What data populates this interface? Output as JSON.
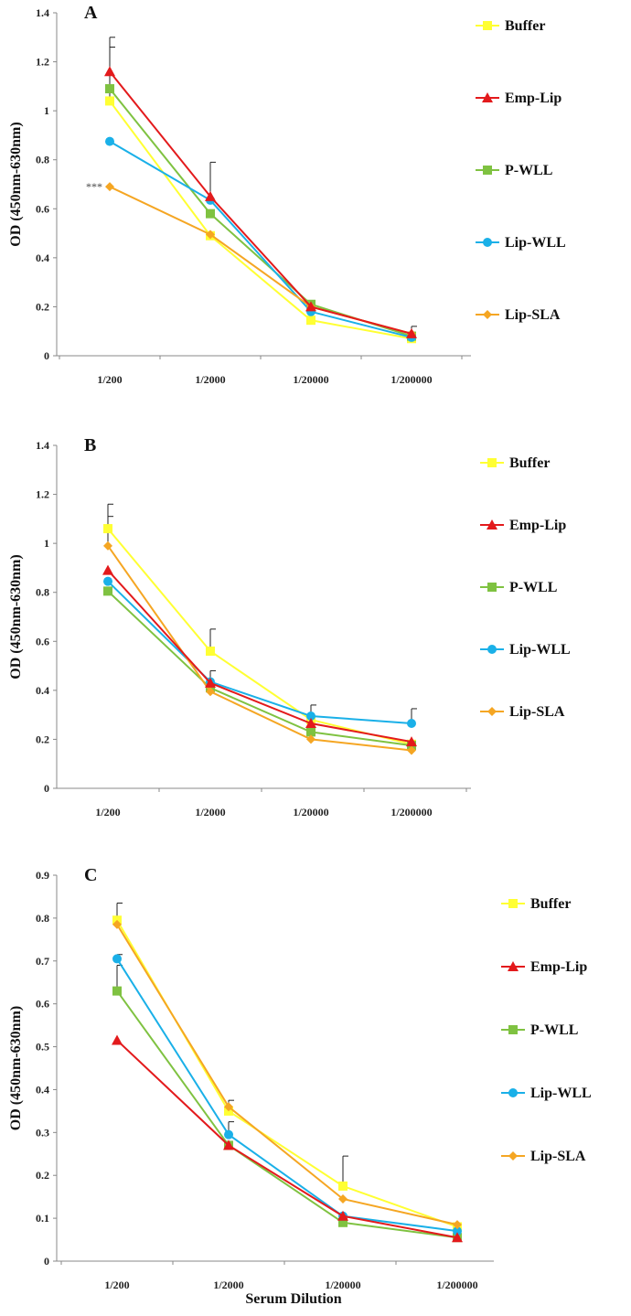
{
  "chart_data": [
    {
      "type": "line",
      "panel_label": "A",
      "ylabel": "OD (450nm-630nm)",
      "xlabel": "",
      "categories": [
        "1/200",
        "1/2000",
        "1/20000",
        "1/200000"
      ],
      "ylim": [
        0,
        1.4
      ],
      "yticks": [
        "0",
        "0.2",
        "0.4",
        "0.6",
        "0.8",
        "1",
        "1.2",
        "1.4"
      ],
      "annotation": "***",
      "series": [
        {
          "name": "Buffer",
          "color": "#ffff33",
          "marker": "square",
          "values": [
            1.04,
            0.49,
            0.145,
            0.07
          ],
          "errors": [
            0.22,
            0.0,
            0.0,
            0.0
          ]
        },
        {
          "name": "Emp-Lip",
          "color": "#e31a1c",
          "marker": "triangle",
          "values": [
            1.16,
            0.65,
            0.2,
            0.09
          ],
          "errors": [
            0.14,
            0.14,
            0.0,
            0.03
          ]
        },
        {
          "name": "P-WLL",
          "color": "#7fc241",
          "marker": "square",
          "values": [
            1.09,
            0.58,
            0.21,
            0.08
          ],
          "errors": [
            0.0,
            0.0,
            0.0,
            0.0
          ]
        },
        {
          "name": "Lip-WLL",
          "color": "#1ab0e8",
          "marker": "circle",
          "values": [
            0.875,
            0.635,
            0.18,
            0.075
          ],
          "errors": [
            0.0,
            0.0,
            0.0,
            0.0
          ]
        },
        {
          "name": "Lip-SLA",
          "color": "#f5a623",
          "marker": "diamond",
          "values": [
            0.69,
            0.495,
            0.2,
            0.09
          ],
          "errors": [
            0.0,
            0.0,
            0.0,
            0.0
          ]
        }
      ]
    },
    {
      "type": "line",
      "panel_label": "B",
      "ylabel": "OD (450nm-630nm)",
      "xlabel": "",
      "categories": [
        "1/200",
        "1/2000",
        "1/20000",
        "1/200000"
      ],
      "ylim": [
        0,
        1.4
      ],
      "yticks": [
        "0",
        "0.2",
        "0.4",
        "0.6",
        "0.8",
        "1",
        "1.2",
        "1.4"
      ],
      "annotation": "",
      "series": [
        {
          "name": "Buffer",
          "color": "#ffff33",
          "marker": "square",
          "values": [
            1.06,
            0.56,
            0.28,
            0.18
          ],
          "errors": [
            0.1,
            0.09,
            0.06,
            0.0
          ]
        },
        {
          "name": "Emp-Lip",
          "color": "#e31a1c",
          "marker": "triangle",
          "values": [
            0.89,
            0.43,
            0.265,
            0.19
          ],
          "errors": [
            0.0,
            0.05,
            0.0,
            0.0
          ]
        },
        {
          "name": "P-WLL",
          "color": "#7fc241",
          "marker": "square",
          "values": [
            0.805,
            0.41,
            0.23,
            0.175
          ],
          "errors": [
            0.0,
            0.0,
            0.0,
            0.0
          ]
        },
        {
          "name": "Lip-WLL",
          "color": "#1ab0e8",
          "marker": "circle",
          "values": [
            0.845,
            0.435,
            0.295,
            0.265
          ],
          "errors": [
            0.0,
            0.0,
            0.0,
            0.06
          ]
        },
        {
          "name": "Lip-SLA",
          "color": "#f5a623",
          "marker": "diamond",
          "values": [
            0.99,
            0.395,
            0.2,
            0.155
          ],
          "errors": [
            0.12,
            0.0,
            0.0,
            0.0
          ]
        }
      ]
    },
    {
      "type": "line",
      "panel_label": "C",
      "ylabel": "OD (450nm-630nm)",
      "xlabel": "Serum Dilution",
      "categories": [
        "1/200",
        "1/2000",
        "1/20000",
        "1/200000"
      ],
      "ylim": [
        0,
        0.9
      ],
      "yticks": [
        "0",
        "0.1",
        "0.2",
        "0.3",
        "0.4",
        "0.5",
        "0.6",
        "0.7",
        "0.8",
        "0.9"
      ],
      "annotation": "",
      "series": [
        {
          "name": "Buffer",
          "color": "#ffff33",
          "marker": "square",
          "values": [
            0.795,
            0.35,
            0.175,
            0.08
          ],
          "errors": [
            0.04,
            0.0,
            0.07,
            0.0
          ]
        },
        {
          "name": "Emp-Lip",
          "color": "#e31a1c",
          "marker": "triangle",
          "values": [
            0.515,
            0.27,
            0.105,
            0.055
          ],
          "errors": [
            0.0,
            0.0,
            0.0,
            0.0
          ]
        },
        {
          "name": "P-WLL",
          "color": "#7fc241",
          "marker": "square",
          "values": [
            0.63,
            0.27,
            0.09,
            0.055
          ],
          "errors": [
            0.06,
            0.0,
            0.0,
            0.0
          ]
        },
        {
          "name": "Lip-WLL",
          "color": "#1ab0e8",
          "marker": "circle",
          "values": [
            0.705,
            0.295,
            0.105,
            0.07
          ],
          "errors": [
            0.01,
            0.03,
            0.0,
            0.0
          ]
        },
        {
          "name": "Lip-SLA",
          "color": "#f5a623",
          "marker": "diamond",
          "values": [
            0.785,
            0.36,
            0.145,
            0.085
          ],
          "errors": [
            0.0,
            0.015,
            0.0,
            0.0
          ]
        }
      ]
    }
  ]
}
